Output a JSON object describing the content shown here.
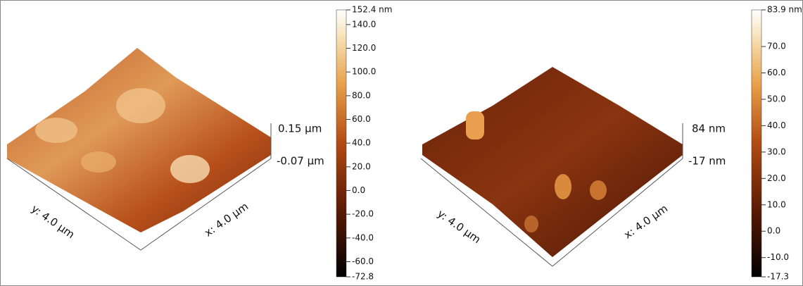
{
  "panels": [
    {
      "x_label": "x: 4.0 µm",
      "y_label": "y: 4.0 µm",
      "z_max": "0.15 µm",
      "z_min": "-0.07 µm",
      "colorbar": {
        "lim": [
          -72.8,
          152.4
        ],
        "ticks": [
          {
            "value": 152.4,
            "label": "152.4 nm"
          },
          {
            "value": 140,
            "label": "140.0"
          },
          {
            "value": 120,
            "label": "120.0"
          },
          {
            "value": 100,
            "label": "100.0"
          },
          {
            "value": 80,
            "label": "80.0"
          },
          {
            "value": 60,
            "label": "60.0"
          },
          {
            "value": 40,
            "label": "40.0"
          },
          {
            "value": 20,
            "label": "20.0"
          },
          {
            "value": 0,
            "label": "0.0"
          },
          {
            "value": -20,
            "label": "-20.0"
          },
          {
            "value": -40,
            "label": "-40.0"
          },
          {
            "value": -60,
            "label": "-60.0"
          },
          {
            "value": -72.8,
            "label": "-72.8"
          }
        ]
      }
    },
    {
      "x_label": "x: 4.0 µm",
      "y_label": "y: 4.0 µm",
      "z_max": "84 nm",
      "z_min": "-17 nm",
      "colorbar": {
        "lim": [
          -17.3,
          83.9
        ],
        "ticks": [
          {
            "value": 83.9,
            "label": "83.9 nm"
          },
          {
            "value": 70,
            "label": "70.0"
          },
          {
            "value": 60,
            "label": "60.0"
          },
          {
            "value": 50,
            "label": "50.0"
          },
          {
            "value": 40,
            "label": "40.0"
          },
          {
            "value": 30,
            "label": "30.0"
          },
          {
            "value": 20,
            "label": "20.0"
          },
          {
            "value": 10,
            "label": "10.0"
          },
          {
            "value": 0,
            "label": "0.0"
          },
          {
            "value": -10,
            "label": "-10.0"
          },
          {
            "value": -17.3,
            "label": "-17.3"
          }
        ]
      }
    }
  ]
}
